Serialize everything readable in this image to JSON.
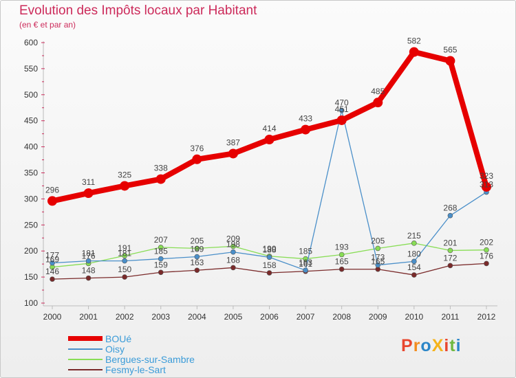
{
  "page": {
    "title": "Evolution des Impôts locaux par Habitant",
    "subtitle": "(en € et par an)",
    "brand": "ProXiti"
  },
  "colors": {
    "title": "#cc2a5a",
    "legend_text": "#3a9bd8",
    "brand": [
      "#e8462e",
      "#f28c1e",
      "#2b86c8",
      "#f5b31a",
      "#e8462e",
      "#6fb83f",
      "#2b86c8"
    ]
  },
  "chart_data": {
    "type": "line",
    "title": "Evolution des Impôts locaux par Habitant",
    "subtitle": "(en € et par an)",
    "xlabel": "",
    "ylabel": "",
    "x": [
      "2000",
      "2001",
      "2002",
      "2003",
      "2004",
      "2005",
      "2006",
      "2007",
      "2008",
      "2009",
      "2010",
      "2011",
      "2012"
    ],
    "ylim": [
      100,
      600
    ],
    "yticks": [
      100,
      150,
      200,
      250,
      300,
      350,
      400,
      450,
      500,
      550,
      600
    ],
    "grid": false,
    "legend": "bottom-left",
    "series": [
      {
        "name": "BOUé",
        "color": "#e60000",
        "style": "thick",
        "values": [
          296,
          311,
          325,
          338,
          376,
          387,
          414,
          433,
          451,
          485,
          582,
          565,
          323
        ]
      },
      {
        "name": "Oisy",
        "color": "#4a8fc9",
        "style": "thin",
        "values": [
          177,
          181,
          181,
          185,
          189,
          198,
          188,
          163,
          470,
          173,
          180,
          268,
          313
        ]
      },
      {
        "name": "Bergues-sur-Sambre",
        "color": "#88dd55",
        "style": "thin",
        "values": [
          169,
          176,
          191,
          207,
          205,
          209,
          190,
          185,
          193,
          205,
          215,
          201,
          202
        ]
      },
      {
        "name": "Fesmy-le-Sart",
        "color": "#7a2a2a",
        "style": "thin",
        "values": [
          146,
          148,
          150,
          159,
          163,
          168,
          158,
          161,
          165,
          165,
          154,
          172,
          176
        ]
      }
    ]
  }
}
